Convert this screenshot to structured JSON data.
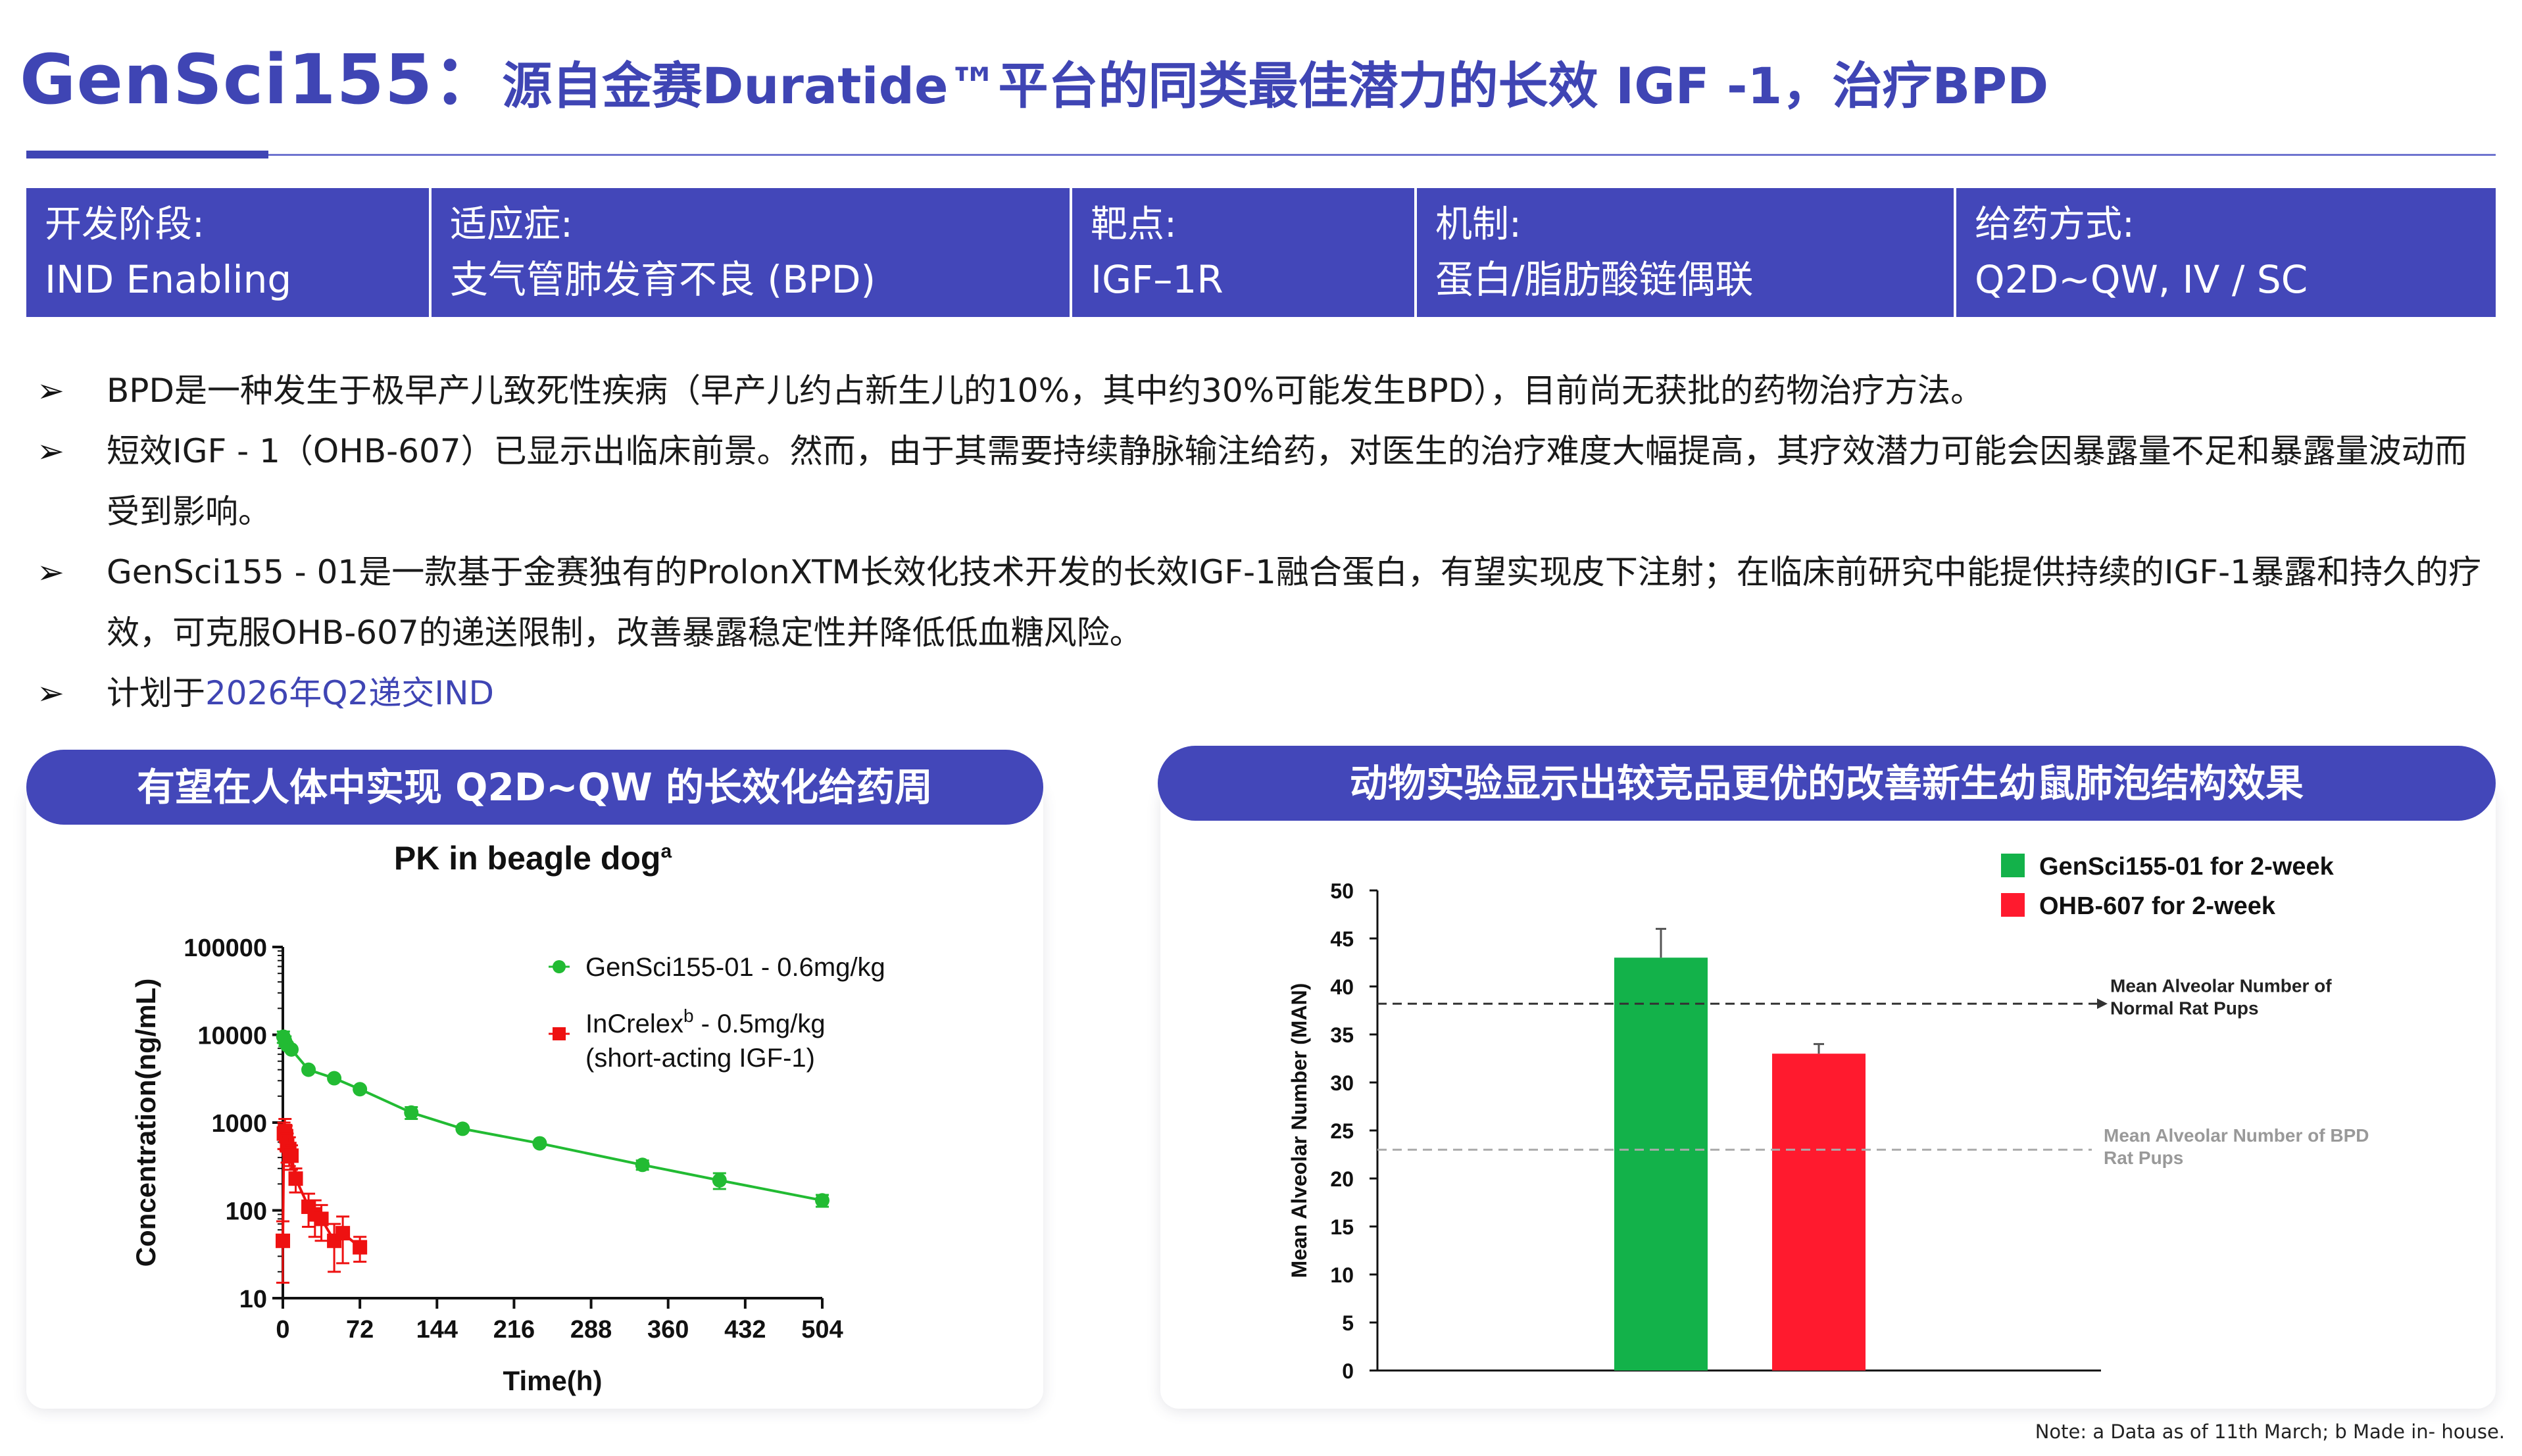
{
  "header": {
    "brand": "GenSci155：",
    "subtitle": "源自金赛Duratide™平台的同类最佳潜力的长效 IGF -1，治疗BPD"
  },
  "info_bar": [
    {
      "key": "开发阶段:",
      "value": "IND Enabling"
    },
    {
      "key": "适应症:",
      "value": "支气管肺发育不良 (BPD)"
    },
    {
      "key": "靶点:",
      "value": "IGF–1R"
    },
    {
      "key": "机制:",
      "value": "蛋白/脂肪酸链偶联"
    },
    {
      "key": "给药方式:",
      "value": "Q2D~QW, IV / SC"
    }
  ],
  "bullets": [
    {
      "text": "BPD是一种发生于极早产儿致死性疾病（早产儿约占新生儿的10%，其中约30%可能发生BPD），目前尚无获批的药物治疗方法。"
    },
    {
      "text": "短效IGF - 1（OHB-607）已显示出临床前景。然而，由于其需要持续静脉输注给药，对医生的治疗难度大幅提高，其疗效潜力可能会因暴露量不足和暴露量波动而受到影响。"
    },
    {
      "text": "GenSci155 - 01是一款基于金赛独有的ProlonXTM长效化技术开发的长效IGF-1融合蛋白，有望实现皮下注射；在临床前研究中能提供持续的IGF-1暴露和持久的疗效，可克服OHB-607的递送限制，改善暴露稳定性并降低低血糖风险。"
    },
    {
      "prefix": "计划于",
      "highlight": "2026年Q2递交IND"
    }
  ],
  "left_panel": {
    "heading": "有望在人体中实现 Q2D~QW 的长效化给药周"
  },
  "right_panel": {
    "heading": "动物实验显示出较竞品更优的改善新生幼鼠肺泡结构效果"
  },
  "footnote": "Note: a Data as of 11th  March;  b Made in- house.",
  "colors": {
    "accent": "#3f45b4",
    "bar": "#4347b9",
    "green": "#22bb33",
    "red": "#ee1111",
    "gensci_bar": "#13b24a",
    "ohb_bar": "#ff1a2e"
  },
  "chart_data": [
    {
      "type": "line",
      "title": "PK in beagle dog",
      "title_sup": "a",
      "xlabel": "Time(h)",
      "ylabel": "Concentration(ng/mL)",
      "yscale": "log",
      "ylim": [
        10,
        100000
      ],
      "xlim": [
        0,
        504
      ],
      "x_ticks": [
        "0",
        "72",
        "144",
        "216",
        "288",
        "360",
        "432",
        "504"
      ],
      "y_ticks": [
        "10",
        "100",
        "1000",
        "10000",
        "100000"
      ],
      "legend_position": "top-right",
      "series": [
        {
          "name": "GenSci155-01 - 0.6mg/kg",
          "marker": "circle",
          "x": [
            0.5,
            2,
            4,
            8,
            24,
            48,
            72,
            120,
            168,
            240,
            336,
            408,
            504
          ],
          "y": [
            9500,
            8500,
            7600,
            6800,
            4000,
            3200,
            2400,
            1300,
            850,
            580,
            330,
            220,
            130
          ],
          "err": [
            1400,
            1100,
            0,
            0,
            0,
            0,
            0,
            200,
            0,
            0,
            40,
            45,
            20
          ]
        },
        {
          "name": "InCrelex",
          "name_sup": "b",
          "name_suffix": " - 0.5mg/kg",
          "name_line2": "(short-acting IGF-1)",
          "marker": "square",
          "x": [
            0,
            1,
            2,
            3,
            4,
            6,
            8,
            12,
            24,
            30,
            36,
            48,
            56,
            72
          ],
          "y": [
            45,
            750,
            800,
            700,
            550,
            500,
            420,
            230,
            110,
            90,
            80,
            45,
            55,
            38
          ],
          "err": [
            30,
            250,
            300,
            220,
            200,
            180,
            130,
            70,
            45,
            40,
            35,
            25,
            30,
            12
          ]
        }
      ]
    },
    {
      "type": "bar",
      "ylabel": "Mean Alveolar Number (MAN)",
      "ylim": [
        0,
        50
      ],
      "y_ticks": [
        "0",
        "5",
        "10",
        "15",
        "20",
        "25",
        "30",
        "35",
        "40",
        "45",
        "50"
      ],
      "legend_position": "top-right",
      "series": [
        {
          "name": "GenSci155-01 for 2-week",
          "value": 43,
          "err": 3
        },
        {
          "name": "OHB-607 for 2-week",
          "value": 33,
          "err": 1
        }
      ],
      "reference_lines": [
        {
          "value": 38.2,
          "label_line1": "Mean Alveolar Number of",
          "label_line2": "Normal Rat Pups"
        },
        {
          "value": 23,
          "label_line1": "Mean Alveolar Number of BPD",
          "label_line2": "Rat Pups"
        }
      ]
    }
  ]
}
